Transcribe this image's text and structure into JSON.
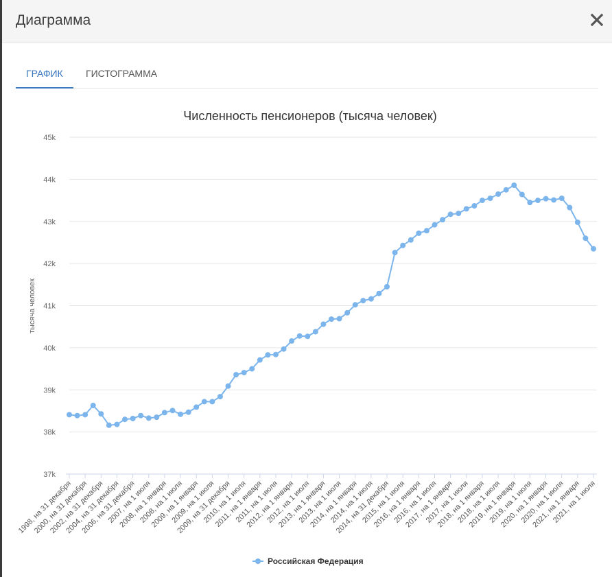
{
  "dialog": {
    "title": "Диаграмма",
    "close_icon": "close-icon"
  },
  "tabs": [
    {
      "label": "ГРАФИК",
      "active": true
    },
    {
      "label": "ГИСТОГРАММА",
      "active": false
    }
  ],
  "colors": {
    "accent": "#3a78c0",
    "series": "#7cb5ec",
    "grid": "#e6e6e6"
  },
  "chart_data": {
    "type": "line",
    "title": "Численность пенсионеров (тысяча человек)",
    "ylabel": "тысяча человек",
    "xlabel": "",
    "ylim": [
      37000,
      45000
    ],
    "yticks": [
      "37k",
      "38k",
      "39k",
      "40k",
      "41k",
      "42k",
      "43k",
      "44k",
      "45k"
    ],
    "grid": true,
    "legend_position": "bottom-center",
    "xtick_labels": [
      "1998, на 31 декабря",
      "2000, на 31 декабря",
      "2002, на 31 декабря",
      "2004, на 31 декабря",
      "2006, на 31 декабря",
      "2007, на 1 июля",
      "2008, на 1 января",
      "2008, на 1 июля",
      "2009, на 1 января",
      "2009, на 1 июля",
      "2009, на 31 декабря",
      "2010, на 1 июля",
      "2011, на 1 января",
      "2011, на 1 июля",
      "2012, на 1 января",
      "2012, на 1 июля",
      "2013, на 1 января",
      "2013, на 1 июля",
      "2014, на 1 января",
      "2014, на 1 июля",
      "2014, на 31 декабря",
      "2015, на 1 июля",
      "2016, на 1 января",
      "2016, на 1 июля",
      "2017, на 1 января",
      "2017, на 1 июля",
      "2018, на 1 января",
      "2018, на 1 июля",
      "2019, на 1 января",
      "2019, на 1 июля",
      "2020, на 1 января",
      "2020, на 1 июля",
      "2021, на 1 января",
      "2021, на 1 июля"
    ],
    "series": [
      {
        "name": "Российская Федерация",
        "values": [
          38410,
          38390,
          38410,
          38630,
          38430,
          38160,
          38180,
          38300,
          38320,
          38390,
          38330,
          38350,
          38460,
          38510,
          38420,
          38470,
          38590,
          38720,
          38720,
          38840,
          39090,
          39360,
          39410,
          39500,
          39710,
          39830,
          39840,
          39970,
          40160,
          40280,
          40270,
          40380,
          40560,
          40680,
          40690,
          40830,
          41020,
          41120,
          41160,
          41290,
          41450,
          42260,
          42430,
          42560,
          42720,
          42780,
          42920,
          43040,
          43170,
          43190,
          43300,
          43370,
          43500,
          43550,
          43650,
          43750,
          43860,
          43640,
          43450,
          43500,
          43540,
          43510,
          43550,
          43330,
          42980,
          42600,
          42350
        ]
      }
    ]
  }
}
